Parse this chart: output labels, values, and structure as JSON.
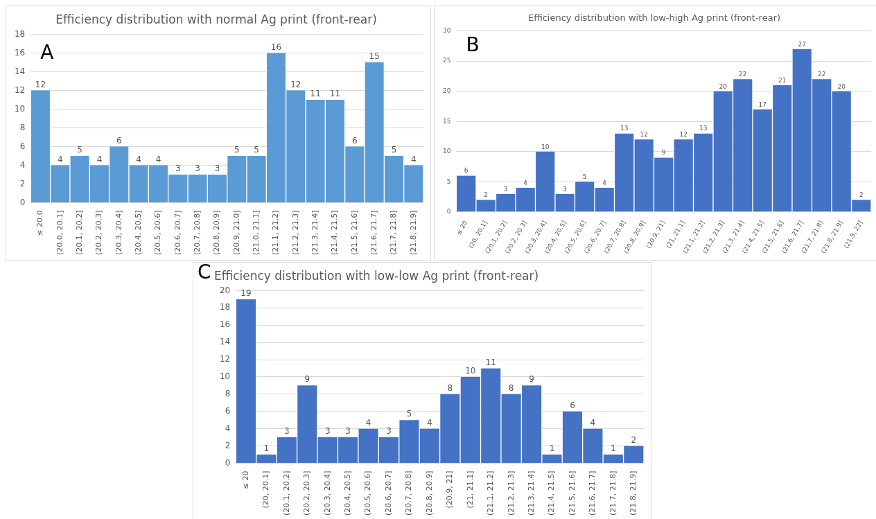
{
  "chart_data": [
    {
      "type": "bar",
      "title": "Efficiency distribution with normal Ag print (front-rear)",
      "annotations": [
        "A"
      ],
      "categories": [
        "≤ 20.0",
        "(20.0, 20.1]",
        "(20.1, 20.2]",
        "(20.2, 20.3]",
        "(20.3, 20.4]",
        "(20.4, 20.5]",
        "(20.5, 20.6]",
        "(20.6, 20.7]",
        "(20.7, 20.8]",
        "(20.8, 20.9]",
        "(20.9, 21.0]",
        "(21.0, 21.1]",
        "(21.1, 21.2]",
        "(21.2, 21.3]",
        "(21.3, 21.4]",
        "(21.4, 21.5]",
        "(21.5, 21.6]",
        "(21.6, 21.7]",
        "(21.7, 21.8]",
        "(21.8, 21.9]"
      ],
      "values": [
        12,
        4,
        5,
        4,
        6,
        4,
        4,
        3,
        3,
        3,
        5,
        5,
        16,
        12,
        11,
        11,
        6,
        15,
        5,
        4
      ],
      "color": "#5b9bd5",
      "ylim": [
        0,
        18
      ],
      "yticks": [
        0,
        2,
        4,
        6,
        8,
        10,
        12,
        14,
        16,
        18
      ],
      "grid": "y",
      "data_labels": true,
      "legend": false
    },
    {
      "type": "bar",
      "title": "Efficiency distribution with low-high Ag print (front-rear)",
      "annotations": [
        "B"
      ],
      "categories": [
        "≤ 20",
        "(20, 20.1]",
        "(20.1, 20.2]",
        "(20.2, 20.3]",
        "(20.3, 20.4]",
        "(20.4, 20.5]",
        "(20.5, 20.6]",
        "(20.6, 20.7]",
        "(20.7, 20.8]",
        "(20.8, 20.9]",
        "(20.9, 21]",
        "(21, 21.1]",
        "(21.1, 21.2]",
        "(21.2, 21.3]",
        "(21.3, 21.4]",
        "(21.4, 21.5]",
        "(21.5, 21.6]",
        "(21.6, 21.7]",
        "(21.7, 21.8]",
        "(21.8, 21.9]",
        "(21.9, 22]"
      ],
      "values": [
        6,
        2,
        3,
        4,
        10,
        3,
        5,
        4,
        13,
        12,
        9,
        12,
        13,
        20,
        22,
        17,
        21,
        27,
        22,
        20,
        2
      ],
      "color": "#4472c4",
      "ylim": [
        0,
        30
      ],
      "yticks": [
        0,
        5,
        10,
        15,
        20,
        25,
        30
      ],
      "grid": "y",
      "data_labels": true,
      "legend": false
    },
    {
      "type": "bar",
      "title": "Efficiency distribution with low-low Ag print (front-rear)",
      "annotations": [
        "C"
      ],
      "categories": [
        "≤ 20",
        "(20, 20.1]",
        "(20.1, 20.2]",
        "(20.2, 20.3]",
        "(20.3, 20.4]",
        "(20.4, 20.5]",
        "(20.5, 20.6]",
        "(20.6, 20.7]",
        "(20.7, 20.8]",
        "(20.8, 20.9]",
        "(20.9, 21]",
        "(21, 21.1]",
        "(21.1, 21.2]",
        "(21.2, 21.3]",
        "(21.3, 21.4]",
        "(21.4, 21.5]",
        "(21.5, 21.6]",
        "(21.6, 21.7]",
        "(21.7, 21.8]",
        "(21.8, 21.9]"
      ],
      "values": [
        19,
        1,
        3,
        9,
        3,
        3,
        4,
        3,
        5,
        4,
        8,
        10,
        11,
        8,
        9,
        1,
        6,
        4,
        1,
        2
      ],
      "color": "#4472c4",
      "ylim": [
        0,
        20
      ],
      "yticks": [
        0,
        2,
        4,
        6,
        8,
        10,
        12,
        14,
        16,
        18,
        20
      ],
      "grid": "y",
      "data_labels": true,
      "legend": false
    }
  ]
}
